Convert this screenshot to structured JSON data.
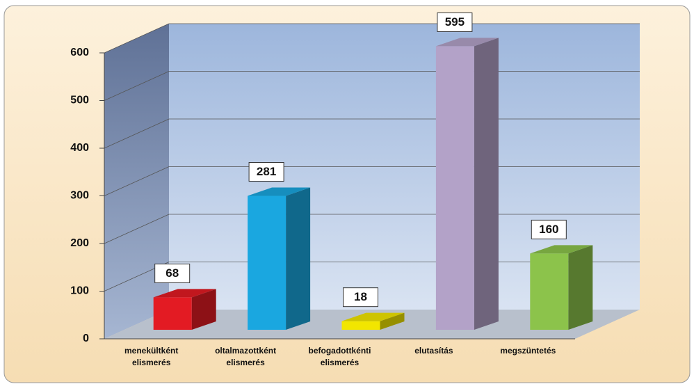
{
  "chart_data": {
    "type": "bar3d",
    "categories": [
      "menekültként elismerés",
      "oltalmazottként elismerés",
      "befogadottkénti elismerés",
      "elutasítás",
      "megszüntetés"
    ],
    "values": [
      68,
      281,
      18,
      595,
      160
    ],
    "colors": [
      "#e31b23",
      "#1aa7e0",
      "#f2e600",
      "#b3a2c8",
      "#8cc34b"
    ],
    "ylim": [
      0,
      600
    ],
    "yticks": [
      0,
      100,
      200,
      300,
      400,
      500,
      600
    ],
    "grid": true
  }
}
